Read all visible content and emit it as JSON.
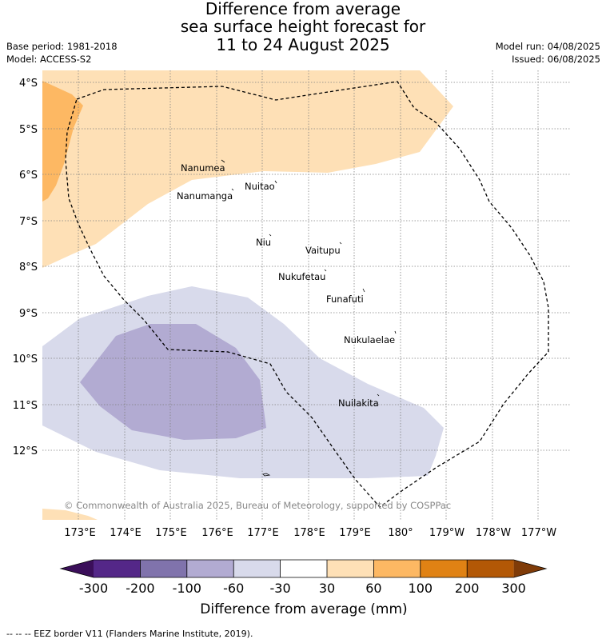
{
  "title": {
    "line1": "Difference from average",
    "line2": "sea surface height forecast for",
    "line3": "11 to 24 August 2025"
  },
  "meta": {
    "base_period": "Base period: 1981-2018",
    "model": "Model: ACCESS-S2",
    "model_run": "Model run: 04/08/2025",
    "issued": "Issued: 06/08/2025"
  },
  "map": {
    "lat_labels": [
      "4°S",
      "5°S",
      "6°S",
      "7°S",
      "8°S",
      "9°S",
      "10°S",
      "11°S",
      "12°S"
    ],
    "lon_labels": [
      "173°E",
      "174°E",
      "175°E",
      "176°E",
      "177°E",
      "178°E",
      "179°E",
      "180°",
      "179°W",
      "178°W",
      "177°W"
    ],
    "places": [
      {
        "name": "Nanumea"
      },
      {
        "name": "Nuitao"
      },
      {
        "name": "Nanumanga"
      },
      {
        "name": "Niu"
      },
      {
        "name": "Vaitupu"
      },
      {
        "name": "Nukufetau"
      },
      {
        "name": "Funafuti"
      },
      {
        "name": "Nukulaelae"
      },
      {
        "name": "Nuilakita"
      }
    ],
    "copyright": "© Commonwealth of Australia 2025, Bureau of Meteorology, supported by COSPPac"
  },
  "colorbar": {
    "label": "Difference from average (mm)",
    "ticks": [
      "-300",
      "-200",
      "-100",
      "-60",
      "-30",
      "30",
      "60",
      "100",
      "200",
      "300"
    ],
    "colors": {
      "below_minus_300": "#3b0f5a",
      "minus_300_to_minus_200": "#542788",
      "minus_200_to_minus_100": "#8073ac",
      "minus_100_to_minus_60": "#b2abd2",
      "minus_60_to_minus_30": "#d8daeb",
      "minus_30_to_30": "#ffffff",
      "30_to_60": "#fee0b6",
      "60_to_100": "#fdb863",
      "100_to_200": "#e08214",
      "200_to_300": "#b35806",
      "above_300": "#7f3b08"
    }
  },
  "footnote": "--  --  -- EEZ border V11 (Flanders Marine Institute, 2019)."
}
